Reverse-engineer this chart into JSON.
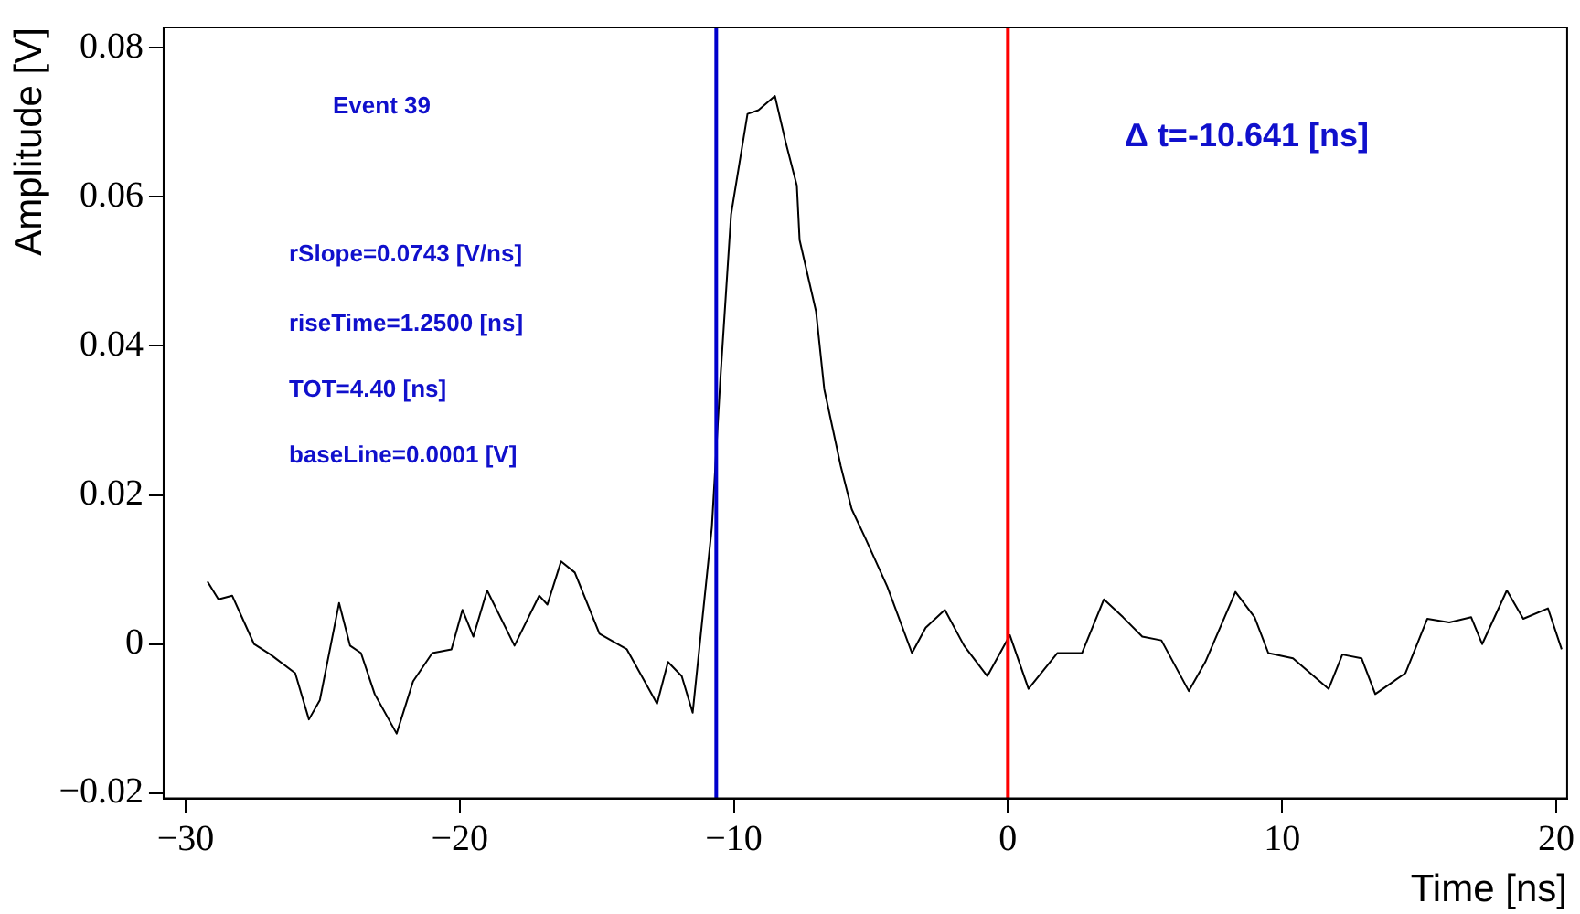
{
  "chart_data": {
    "type": "line",
    "xlabel": "Time [ns]",
    "ylabel": "Amplitude [V]",
    "xlim": [
      -30.8,
      20.4
    ],
    "ylim": [
      -0.0207,
      0.0827
    ],
    "xticks": [
      -30,
      -20,
      -10,
      0,
      10,
      20
    ],
    "yticks": [
      -0.02,
      0,
      0.02,
      0.04,
      0.06,
      0.08
    ],
    "grid": false,
    "legend": false,
    "marker": "none",
    "line_style": "solid",
    "series": [
      {
        "color": "#000000",
        "x": [
          -29.2,
          -28.8,
          -28.3,
          -27.5,
          -26.9,
          -26.0,
          -25.5,
          -25.1,
          -24.4,
          -24.0,
          -23.6,
          -23.1,
          -22.3,
          -21.7,
          -21.0,
          -20.3,
          -19.9,
          -19.5,
          -19.0,
          -18.0,
          -17.1,
          -16.8,
          -16.3,
          -15.8,
          -14.9,
          -13.9,
          -12.8,
          -12.4,
          -11.9,
          -11.5,
          -10.8,
          -10.5,
          -10.1,
          -9.5,
          -9.1,
          -8.5,
          -8.1,
          -7.7,
          -7.6,
          -7.0,
          -6.7,
          -6.1,
          -5.7,
          -5.2,
          -4.4,
          -3.5,
          -3.0,
          -2.3,
          -1.6,
          -0.75,
          0.07,
          0.75,
          1.8,
          2.7,
          3.5,
          4.2,
          4.9,
          5.6,
          6.6,
          7.2,
          8.3,
          9.0,
          9.5,
          10.4,
          11.7,
          12.2,
          12.9,
          13.4,
          14.5,
          15.3,
          16.1,
          16.9,
          17.3,
          18.2,
          18.8,
          19.7,
          20.2
        ],
        "values": [
          0.0084,
          0.006,
          0.0065,
          0.0,
          -0.0014,
          -0.0039,
          -0.0101,
          -0.0075,
          0.0055,
          -0.0002,
          -0.0012,
          -0.0067,
          -0.012,
          -0.005,
          -0.0012,
          -0.0007,
          0.0046,
          0.001,
          0.0072,
          -0.0002,
          0.0065,
          0.0053,
          0.0111,
          0.0096,
          0.0014,
          -0.0007,
          -0.008,
          -0.0024,
          -0.0043,
          -0.0092,
          0.0157,
          0.035,
          0.0576,
          0.0711,
          0.0716,
          0.0735,
          0.0672,
          0.0615,
          0.0542,
          0.0446,
          0.0342,
          0.0239,
          0.0181,
          0.0142,
          0.0077,
          -0.0012,
          0.0022,
          0.0046,
          -0.0002,
          -0.0043,
          0.0012,
          -0.006,
          -0.0012,
          -0.0012,
          0.006,
          0.0036,
          0.001,
          0.0005,
          -0.0063,
          -0.0024,
          0.007,
          0.0036,
          -0.0012,
          -0.0019,
          -0.006,
          -0.0014,
          -0.0019,
          -0.0067,
          -0.0039,
          0.0034,
          0.0029,
          0.0036,
          0.0,
          0.0072,
          0.0034,
          0.0048,
          -0.0007
        ]
      }
    ],
    "ref_lines": [
      {
        "axis": "x",
        "value": -10.641,
        "color": "#0000cc"
      },
      {
        "axis": "x",
        "value": 0,
        "color": "#ff0000"
      }
    ],
    "annotations": [
      "Event 39",
      "rSlope=0.0743 [V/ns]",
      "riseTime=1.2500 [ns]",
      "TOT=4.40 [ns]",
      "baseLine=0.0001 [V]",
      "Δ t=-10.641 [ns]"
    ]
  }
}
